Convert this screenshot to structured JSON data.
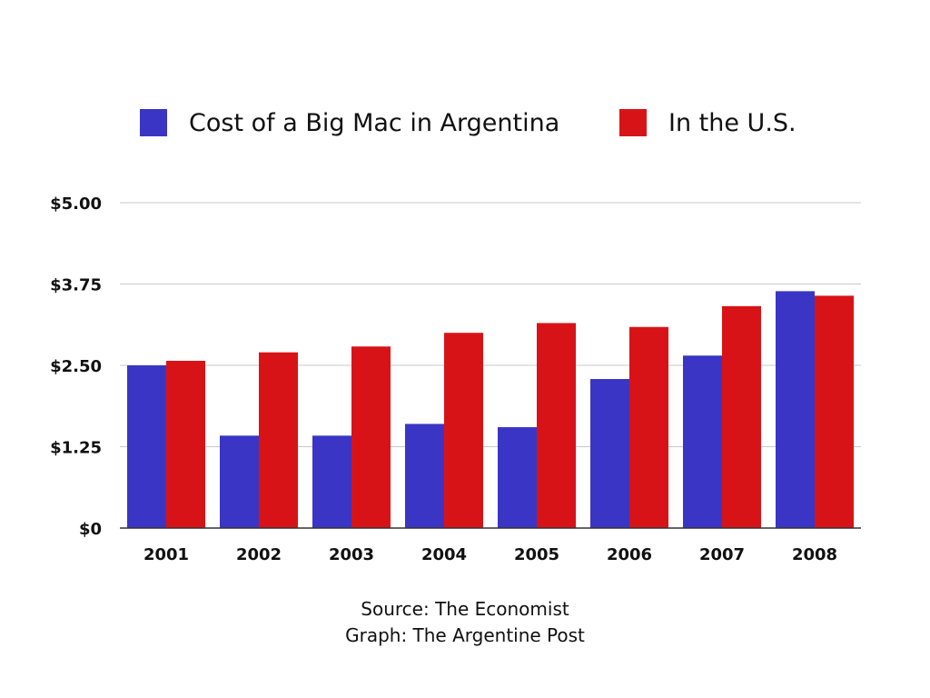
{
  "colors": {
    "argentina": "#3a35c4",
    "us": "#d81317",
    "gridline": "#c8c8c8",
    "axis": "#333333"
  },
  "chart_data": {
    "type": "bar",
    "categories": [
      "2001",
      "2002",
      "2003",
      "2004",
      "2005",
      "2006",
      "2007",
      "2008"
    ],
    "series": [
      {
        "name": "Cost of a Big Mac in Argentina",
        "values": [
          2.5,
          1.42,
          1.42,
          1.6,
          1.55,
          2.29,
          2.65,
          3.64
        ]
      },
      {
        "name": "In the U.S.",
        "values": [
          2.57,
          2.7,
          2.79,
          3.0,
          3.15,
          3.09,
          3.41,
          3.57
        ]
      }
    ],
    "ylim": [
      0,
      5
    ],
    "yticks": [
      {
        "value": 0,
        "label": "$0"
      },
      {
        "value": 1.25,
        "label": "$1.25"
      },
      {
        "value": 2.5,
        "label": "$2.50"
      },
      {
        "value": 3.75,
        "label": "$3.75"
      },
      {
        "value": 5,
        "label": "$5.00"
      }
    ],
    "grid": true,
    "legend_position": "top"
  },
  "footer": {
    "source": "Source: The Economist",
    "graph": "Graph: The Argentine Post"
  }
}
